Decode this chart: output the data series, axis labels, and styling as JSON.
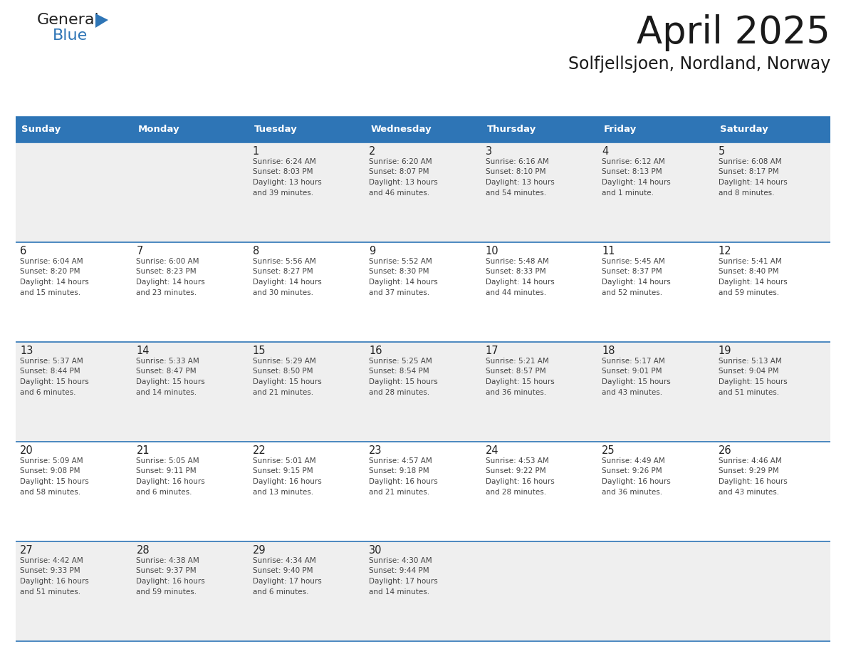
{
  "title": "April 2025",
  "subtitle": "Solfjellsjoen, Nordland, Norway",
  "header_bg": "#2E75B6",
  "header_text_color": "#FFFFFF",
  "cell_bg_odd": "#EFEFEF",
  "cell_bg_even": "#FFFFFF",
  "day_number_color": "#222222",
  "text_color": "#444444",
  "border_color": "#2E75B6",
  "logo_general_color": "#222222",
  "logo_blue_color": "#2E75B6",
  "days_of_week": [
    "Sunday",
    "Monday",
    "Tuesday",
    "Wednesday",
    "Thursday",
    "Friday",
    "Saturday"
  ],
  "weeks": [
    [
      {
        "day": "",
        "info": ""
      },
      {
        "day": "",
        "info": ""
      },
      {
        "day": "1",
        "info": "Sunrise: 6:24 AM\nSunset: 8:03 PM\nDaylight: 13 hours\nand 39 minutes."
      },
      {
        "day": "2",
        "info": "Sunrise: 6:20 AM\nSunset: 8:07 PM\nDaylight: 13 hours\nand 46 minutes."
      },
      {
        "day": "3",
        "info": "Sunrise: 6:16 AM\nSunset: 8:10 PM\nDaylight: 13 hours\nand 54 minutes."
      },
      {
        "day": "4",
        "info": "Sunrise: 6:12 AM\nSunset: 8:13 PM\nDaylight: 14 hours\nand 1 minute."
      },
      {
        "day": "5",
        "info": "Sunrise: 6:08 AM\nSunset: 8:17 PM\nDaylight: 14 hours\nand 8 minutes."
      }
    ],
    [
      {
        "day": "6",
        "info": "Sunrise: 6:04 AM\nSunset: 8:20 PM\nDaylight: 14 hours\nand 15 minutes."
      },
      {
        "day": "7",
        "info": "Sunrise: 6:00 AM\nSunset: 8:23 PM\nDaylight: 14 hours\nand 23 minutes."
      },
      {
        "day": "8",
        "info": "Sunrise: 5:56 AM\nSunset: 8:27 PM\nDaylight: 14 hours\nand 30 minutes."
      },
      {
        "day": "9",
        "info": "Sunrise: 5:52 AM\nSunset: 8:30 PM\nDaylight: 14 hours\nand 37 minutes."
      },
      {
        "day": "10",
        "info": "Sunrise: 5:48 AM\nSunset: 8:33 PM\nDaylight: 14 hours\nand 44 minutes."
      },
      {
        "day": "11",
        "info": "Sunrise: 5:45 AM\nSunset: 8:37 PM\nDaylight: 14 hours\nand 52 minutes."
      },
      {
        "day": "12",
        "info": "Sunrise: 5:41 AM\nSunset: 8:40 PM\nDaylight: 14 hours\nand 59 minutes."
      }
    ],
    [
      {
        "day": "13",
        "info": "Sunrise: 5:37 AM\nSunset: 8:44 PM\nDaylight: 15 hours\nand 6 minutes."
      },
      {
        "day": "14",
        "info": "Sunrise: 5:33 AM\nSunset: 8:47 PM\nDaylight: 15 hours\nand 14 minutes."
      },
      {
        "day": "15",
        "info": "Sunrise: 5:29 AM\nSunset: 8:50 PM\nDaylight: 15 hours\nand 21 minutes."
      },
      {
        "day": "16",
        "info": "Sunrise: 5:25 AM\nSunset: 8:54 PM\nDaylight: 15 hours\nand 28 minutes."
      },
      {
        "day": "17",
        "info": "Sunrise: 5:21 AM\nSunset: 8:57 PM\nDaylight: 15 hours\nand 36 minutes."
      },
      {
        "day": "18",
        "info": "Sunrise: 5:17 AM\nSunset: 9:01 PM\nDaylight: 15 hours\nand 43 minutes."
      },
      {
        "day": "19",
        "info": "Sunrise: 5:13 AM\nSunset: 9:04 PM\nDaylight: 15 hours\nand 51 minutes."
      }
    ],
    [
      {
        "day": "20",
        "info": "Sunrise: 5:09 AM\nSunset: 9:08 PM\nDaylight: 15 hours\nand 58 minutes."
      },
      {
        "day": "21",
        "info": "Sunrise: 5:05 AM\nSunset: 9:11 PM\nDaylight: 16 hours\nand 6 minutes."
      },
      {
        "day": "22",
        "info": "Sunrise: 5:01 AM\nSunset: 9:15 PM\nDaylight: 16 hours\nand 13 minutes."
      },
      {
        "day": "23",
        "info": "Sunrise: 4:57 AM\nSunset: 9:18 PM\nDaylight: 16 hours\nand 21 minutes."
      },
      {
        "day": "24",
        "info": "Sunrise: 4:53 AM\nSunset: 9:22 PM\nDaylight: 16 hours\nand 28 minutes."
      },
      {
        "day": "25",
        "info": "Sunrise: 4:49 AM\nSunset: 9:26 PM\nDaylight: 16 hours\nand 36 minutes."
      },
      {
        "day": "26",
        "info": "Sunrise: 4:46 AM\nSunset: 9:29 PM\nDaylight: 16 hours\nand 43 minutes."
      }
    ],
    [
      {
        "day": "27",
        "info": "Sunrise: 4:42 AM\nSunset: 9:33 PM\nDaylight: 16 hours\nand 51 minutes."
      },
      {
        "day": "28",
        "info": "Sunrise: 4:38 AM\nSunset: 9:37 PM\nDaylight: 16 hours\nand 59 minutes."
      },
      {
        "day": "29",
        "info": "Sunrise: 4:34 AM\nSunset: 9:40 PM\nDaylight: 17 hours\nand 6 minutes."
      },
      {
        "day": "30",
        "info": "Sunrise: 4:30 AM\nSunset: 9:44 PM\nDaylight: 17 hours\nand 14 minutes."
      },
      {
        "day": "",
        "info": ""
      },
      {
        "day": "",
        "info": ""
      },
      {
        "day": "",
        "info": ""
      }
    ]
  ]
}
